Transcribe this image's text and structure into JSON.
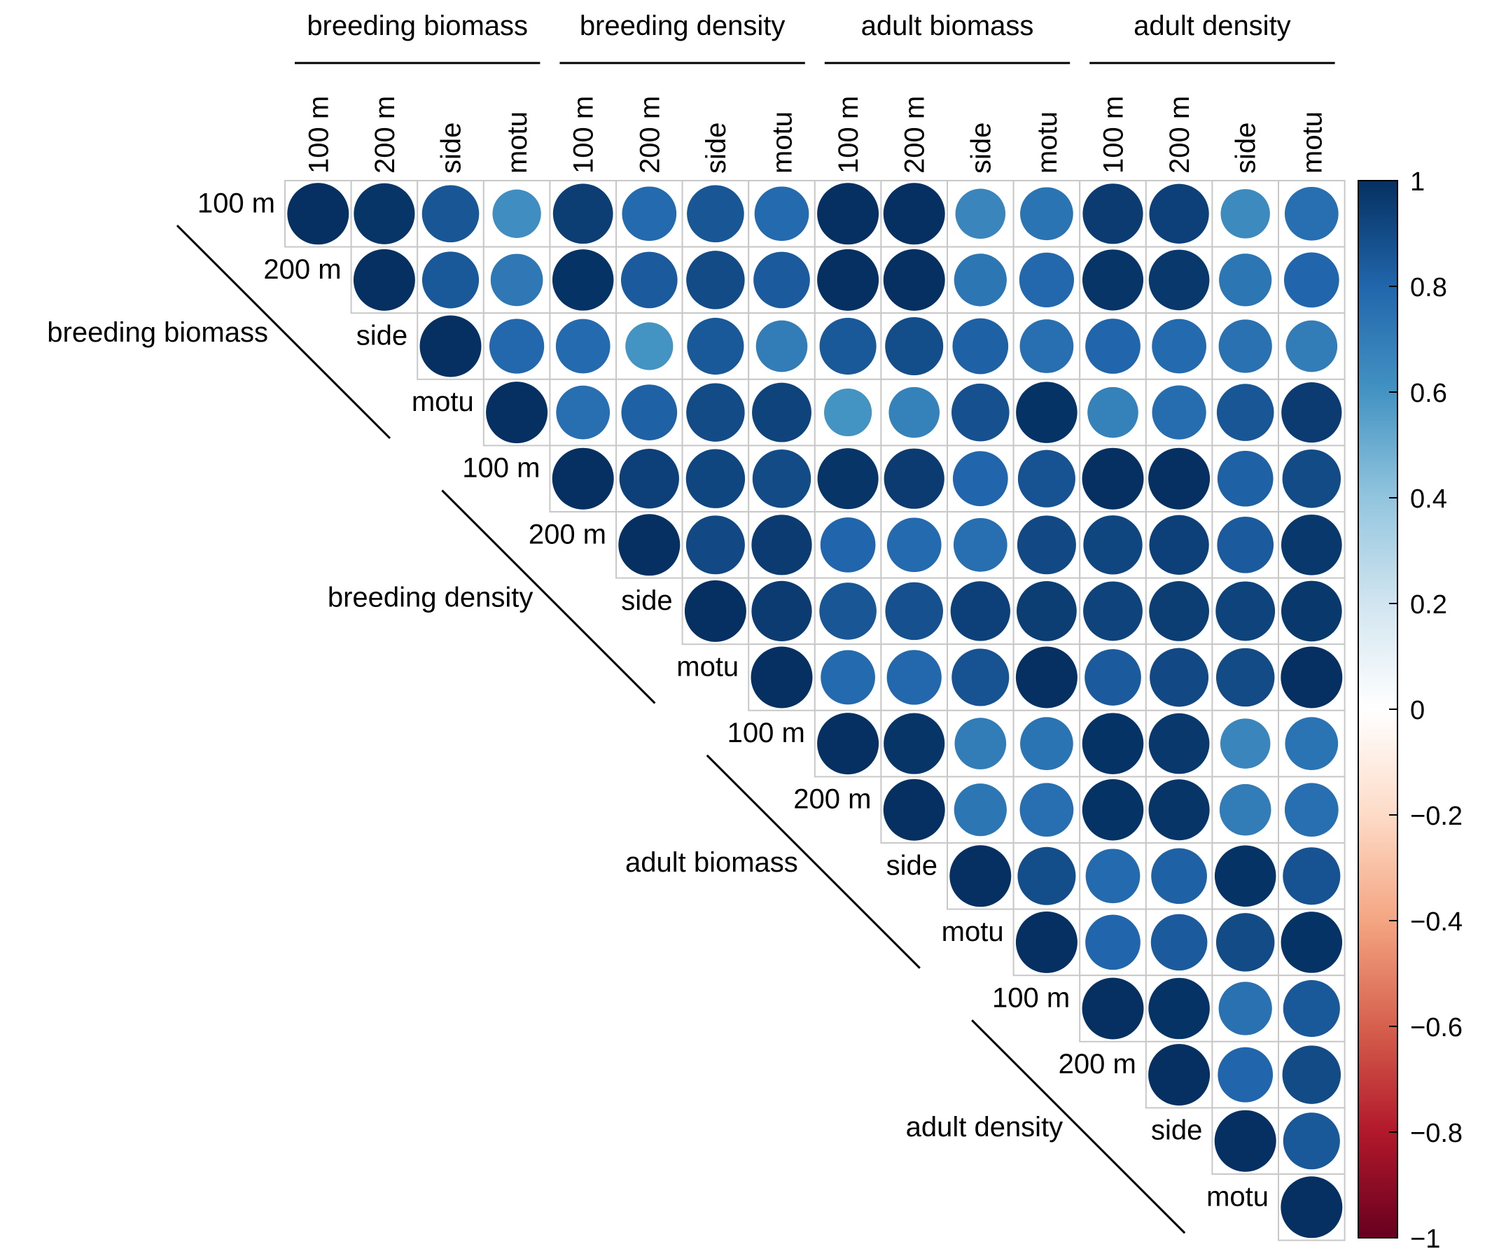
{
  "chart_data": {
    "type": "heatmap",
    "title": "",
    "variables": [
      "100 m",
      "200 m",
      "side",
      "motu",
      "100 m",
      "200 m",
      "side",
      "motu",
      "100 m",
      "200 m",
      "side",
      "motu",
      "100 m",
      "200 m",
      "side",
      "motu"
    ],
    "groups": [
      "breeding biomass",
      "breeding density",
      "adult biomass",
      "adult density"
    ],
    "matrix": [
      [
        1.0,
        0.98,
        0.86,
        0.62,
        0.95,
        0.78,
        0.86,
        0.78,
        1.0,
        1.0,
        0.66,
        0.74,
        0.96,
        0.94,
        0.64,
        0.76
      ],
      [
        null,
        1.0,
        0.85,
        0.72,
        0.99,
        0.84,
        0.9,
        0.84,
        1.0,
        1.0,
        0.73,
        0.79,
        0.98,
        0.97,
        0.73,
        0.8
      ],
      [
        null,
        null,
        1.0,
        0.79,
        0.78,
        0.6,
        0.85,
        0.7,
        0.85,
        0.89,
        0.82,
        0.76,
        0.8,
        0.78,
        0.75,
        0.7
      ],
      [
        null,
        null,
        null,
        1.0,
        0.76,
        0.82,
        0.9,
        0.93,
        0.6,
        0.68,
        0.88,
        0.99,
        0.68,
        0.77,
        0.86,
        0.96
      ],
      [
        null,
        null,
        null,
        null,
        1.0,
        0.94,
        0.92,
        0.9,
        0.98,
        0.96,
        0.8,
        0.87,
        1.0,
        1.0,
        0.82,
        0.9
      ],
      [
        null,
        null,
        null,
        null,
        null,
        1.0,
        0.91,
        0.96,
        0.8,
        0.78,
        0.76,
        0.91,
        0.92,
        0.94,
        0.84,
        0.97
      ],
      [
        null,
        null,
        null,
        null,
        null,
        null,
        1.0,
        0.96,
        0.86,
        0.88,
        0.94,
        0.95,
        0.93,
        0.95,
        0.93,
        0.97
      ],
      [
        null,
        null,
        null,
        null,
        null,
        null,
        null,
        1.0,
        0.78,
        0.79,
        0.87,
        1.0,
        0.84,
        0.91,
        0.9,
        1.0
      ],
      [
        null,
        null,
        null,
        null,
        null,
        null,
        null,
        null,
        1.0,
        0.98,
        0.7,
        0.74,
        0.99,
        0.97,
        0.66,
        0.74
      ],
      [
        null,
        null,
        null,
        null,
        null,
        null,
        null,
        null,
        null,
        1.0,
        0.73,
        0.76,
        0.99,
        0.98,
        0.7,
        0.76
      ],
      [
        null,
        null,
        null,
        null,
        null,
        null,
        null,
        null,
        null,
        null,
        1.0,
        0.89,
        0.78,
        0.82,
        0.99,
        0.87
      ],
      [
        null,
        null,
        null,
        null,
        null,
        null,
        null,
        null,
        null,
        null,
        null,
        1.0,
        0.8,
        0.84,
        0.9,
        0.99
      ],
      [
        null,
        null,
        null,
        null,
        null,
        null,
        null,
        null,
        null,
        null,
        null,
        null,
        1.0,
        0.99,
        0.75,
        0.85
      ],
      [
        null,
        null,
        null,
        null,
        null,
        null,
        null,
        null,
        null,
        null,
        null,
        null,
        null,
        1.0,
        0.8,
        0.9
      ],
      [
        null,
        null,
        null,
        null,
        null,
        null,
        null,
        null,
        null,
        null,
        null,
        null,
        null,
        null,
        1.0,
        0.85
      ],
      [
        null,
        null,
        null,
        null,
        null,
        null,
        null,
        null,
        null,
        null,
        null,
        null,
        null,
        null,
        null,
        1.0
      ]
    ],
    "colorbar": {
      "range": [
        -1,
        1
      ],
      "ticks": [
        "1",
        "0.8",
        "0.6",
        "0.4",
        "0.2",
        "0",
        "−0.2",
        "−0.4",
        "−0.6",
        "−0.8",
        "−1"
      ],
      "colors": [
        "#67001F",
        "#B2182B",
        "#D6604D",
        "#F4A582",
        "#FDDBC7",
        "#FFFFFF",
        "#D1E5F0",
        "#92C5DE",
        "#4393C3",
        "#2166AC",
        "#053061"
      ]
    },
    "legend_position": "right"
  }
}
